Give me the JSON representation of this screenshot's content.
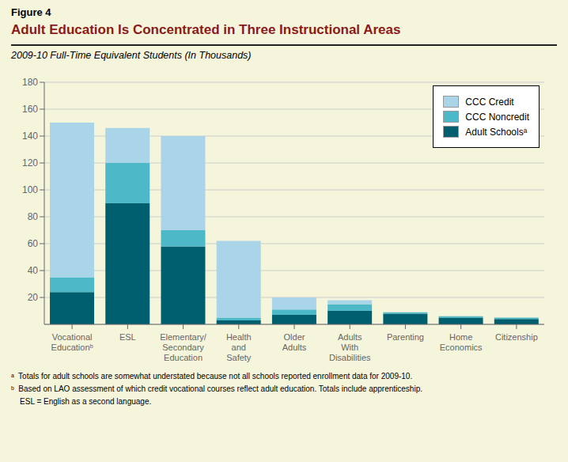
{
  "chart_data": {
    "type": "bar",
    "figure_label": "Figure 4",
    "title": "Adult Education Is Concentrated in Three Instructional Areas",
    "subtitle": "2009-10 Full-Time Equivalent Students (In Thousands)",
    "categories": [
      "Vocational\nEducationᵇ",
      "ESL",
      "Elementary/\nSecondary\nEducation",
      "Health\nand\nSafety",
      "Older\nAdults",
      "Adults\nWith\nDisabilities",
      "Parenting",
      "Home\nEconomics",
      "Citizenship"
    ],
    "series": [
      {
        "name": "Adult Schoolsᵃ",
        "color": "#005f6e",
        "values": [
          24,
          90,
          58,
          3,
          7,
          10,
          8,
          5,
          4
        ]
      },
      {
        "name": "CCC Noncredit",
        "color": "#4db8c8",
        "values": [
          11,
          30,
          12,
          2,
          4,
          5,
          1,
          1,
          1
        ]
      },
      {
        "name": "CCC Credit",
        "color": "#aad4e8",
        "values": [
          115,
          26,
          70,
          57,
          9,
          3,
          0,
          0,
          0
        ]
      }
    ],
    "stacked": true,
    "ylim": [
      0,
      180
    ],
    "yticks": [
      20,
      40,
      60,
      80,
      100,
      120,
      140,
      160,
      180
    ],
    "grid": true,
    "legend": "upper right",
    "annotations": [
      "ᵃ  Totals for adult schools are somewhat understated because not all schools reported enrollment data for 2009-10.",
      "ᵇ  Based on LAO assessment of which credit vocational courses reflect adult education. Totals include apprenticeship.",
      "    ESL = English as a second language."
    ]
  }
}
